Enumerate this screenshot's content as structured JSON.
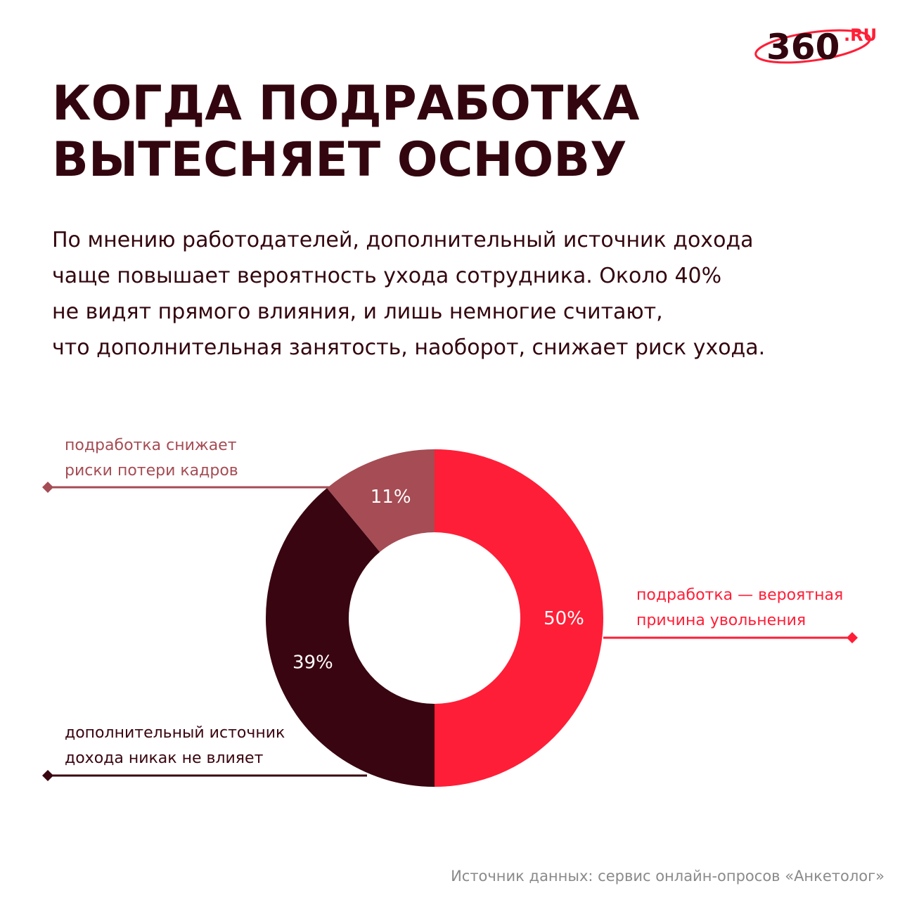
{
  "brand": {
    "name": "360",
    "suffix": ".RU",
    "color": "#33060f",
    "accent": "#ff1e37"
  },
  "title": [
    "КОГДА ПОДРАБОТКА",
    "ВЫТЕСНЯЕТ ОСНОВУ"
  ],
  "subtitle": [
    "По мнению работодателей, дополнительный источник дохода",
    "чаще повышает вероятность ухода сотрудника. Около 40%",
    "не видят прямого влияния, и лишь немногие считают,",
    "что дополнительная занятость, наоборот, снижает риск ухода."
  ],
  "chart_data": {
    "type": "pie",
    "donut": true,
    "unit": "%",
    "slices": [
      {
        "label": [
          "подработка — вероятная",
          "причина увольнения"
        ],
        "value": 50,
        "display": "50%",
        "color": "#ff1e37"
      },
      {
        "label": [
          "дополнительный источник",
          "дохода никак не влияет"
        ],
        "value": 39,
        "display": "39%",
        "color": "#390510"
      },
      {
        "label": [
          "подработка снижает",
          "риски потери кадров"
        ],
        "value": 11,
        "display": "11%",
        "color": "#a54c54"
      }
    ]
  },
  "source": "Источник данных: сервис онлайн-опросов «Анкетолог»"
}
